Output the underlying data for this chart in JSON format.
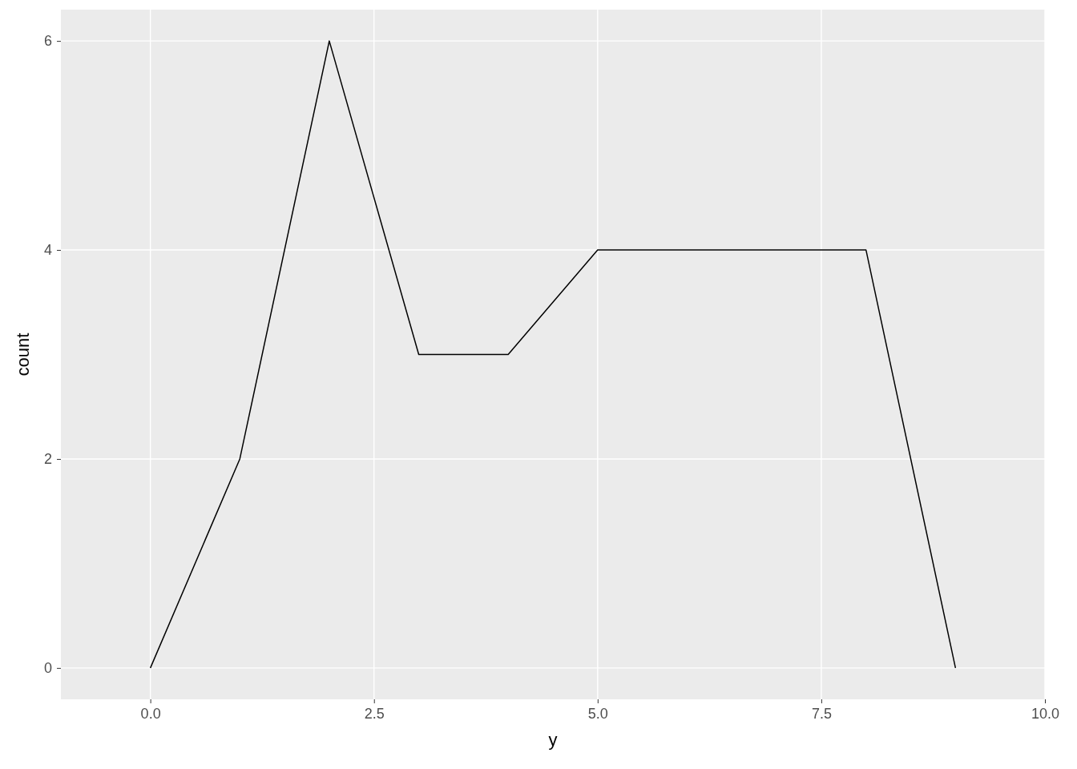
{
  "chart_data": {
    "type": "line",
    "xlabel": "y",
    "ylabel": "count",
    "x": [
      0,
      1,
      2,
      3,
      4,
      5,
      6,
      7,
      8,
      9
    ],
    "series": [
      {
        "color": "#000000",
        "values": [
          0,
          2,
          6,
          3,
          3,
          4,
          4,
          4,
          4,
          0
        ]
      }
    ],
    "xlim": [
      -1,
      10
    ],
    "xticks": [
      {
        "value": 0,
        "label": "0.0"
      },
      {
        "value": 2.5,
        "label": "2.5"
      },
      {
        "value": 5,
        "label": "5.0"
      },
      {
        "value": 7.5,
        "label": "7.5"
      },
      {
        "value": 10,
        "label": "10.0"
      }
    ],
    "ylim": [
      -0.3,
      6.3
    ],
    "yticks": [
      0,
      2,
      4,
      6
    ],
    "grid": true,
    "marker": "none",
    "line_style": "solid"
  }
}
